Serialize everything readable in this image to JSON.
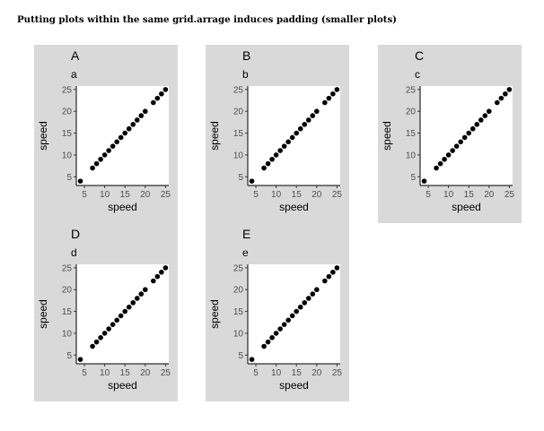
{
  "title": "Putting plots within the same grid.arrage induces padding (smaller plots)",
  "colors": {
    "panel_bg": "#d9d9d9",
    "plot_bg": "#ffffff",
    "point": "#000000",
    "tick_text": "#4d4d4d"
  },
  "chart_data": [
    {
      "type": "scatter",
      "tag": "A",
      "title": "a",
      "xlabel": "speed",
      "ylabel": "speed",
      "xlim": [
        3,
        25.8
      ],
      "ylim": [
        3,
        25.8
      ],
      "xticks": [
        "5",
        "10",
        "15",
        "20",
        "25"
      ],
      "yticks": [
        "5",
        "10",
        "15",
        "20",
        "25"
      ],
      "grid": false,
      "x": [
        4,
        7,
        8,
        9,
        10,
        11,
        12,
        13,
        14,
        15,
        16,
        17,
        18,
        19,
        20,
        22,
        23,
        24,
        25
      ],
      "y": [
        4,
        7,
        8,
        9,
        10,
        11,
        12,
        13,
        14,
        15,
        16,
        17,
        18,
        19,
        20,
        22,
        23,
        24,
        25
      ]
    },
    {
      "type": "scatter",
      "tag": "B",
      "title": "b",
      "xlabel": "speed",
      "ylabel": "speed",
      "xlim": [
        3,
        25.8
      ],
      "ylim": [
        3,
        25.8
      ],
      "xticks": [
        "5",
        "10",
        "15",
        "20",
        "25"
      ],
      "yticks": [
        "5",
        "10",
        "15",
        "20",
        "25"
      ],
      "grid": false,
      "x": [
        4,
        7,
        8,
        9,
        10,
        11,
        12,
        13,
        14,
        15,
        16,
        17,
        18,
        19,
        20,
        22,
        23,
        24,
        25
      ],
      "y": [
        4,
        7,
        8,
        9,
        10,
        11,
        12,
        13,
        14,
        15,
        16,
        17,
        18,
        19,
        20,
        22,
        23,
        24,
        25
      ]
    },
    {
      "type": "scatter",
      "tag": "C",
      "title": "c",
      "xlabel": "speed",
      "ylabel": "speed",
      "xlim": [
        3,
        25.8
      ],
      "ylim": [
        3,
        25.8
      ],
      "xticks": [
        "5",
        "10",
        "15",
        "20",
        "25"
      ],
      "yticks": [
        "5",
        "10",
        "15",
        "20",
        "25"
      ],
      "grid": false,
      "x": [
        4,
        7,
        8,
        9,
        10,
        11,
        12,
        13,
        14,
        15,
        16,
        17,
        18,
        19,
        20,
        22,
        23,
        24,
        25
      ],
      "y": [
        4,
        7,
        8,
        9,
        10,
        11,
        12,
        13,
        14,
        15,
        16,
        17,
        18,
        19,
        20,
        22,
        23,
        24,
        25
      ]
    },
    {
      "type": "scatter",
      "tag": "D",
      "title": "d",
      "xlabel": "speed",
      "ylabel": "speed",
      "xlim": [
        3,
        25.8
      ],
      "ylim": [
        3,
        25.8
      ],
      "xticks": [
        "5",
        "10",
        "15",
        "20",
        "25"
      ],
      "yticks": [
        "5",
        "10",
        "15",
        "20",
        "25"
      ],
      "grid": false,
      "x": [
        4,
        7,
        8,
        9,
        10,
        11,
        12,
        13,
        14,
        15,
        16,
        17,
        18,
        19,
        20,
        22,
        23,
        24,
        25
      ],
      "y": [
        4,
        7,
        8,
        9,
        10,
        11,
        12,
        13,
        14,
        15,
        16,
        17,
        18,
        19,
        20,
        22,
        23,
        24,
        25
      ]
    },
    {
      "type": "scatter",
      "tag": "E",
      "title": "e",
      "xlabel": "speed",
      "ylabel": "speed",
      "xlim": [
        3,
        25.8
      ],
      "ylim": [
        3,
        25.8
      ],
      "xticks": [
        "5",
        "10",
        "15",
        "20",
        "25"
      ],
      "yticks": [
        "5",
        "10",
        "15",
        "20",
        "25"
      ],
      "grid": false,
      "x": [
        4,
        7,
        8,
        9,
        10,
        11,
        12,
        13,
        14,
        15,
        16,
        17,
        18,
        19,
        20,
        22,
        23,
        24,
        25
      ],
      "y": [
        4,
        7,
        8,
        9,
        10,
        11,
        12,
        13,
        14,
        15,
        16,
        17,
        18,
        19,
        20,
        22,
        23,
        24,
        25
      ]
    }
  ]
}
